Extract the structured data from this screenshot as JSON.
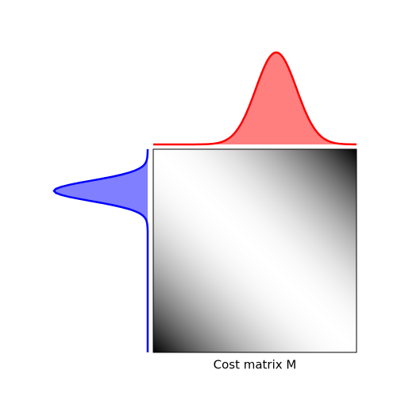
{
  "chart_data": {
    "type": "ot-matrix",
    "xlabel": "Cost matrix M",
    "n": 100,
    "source": {
      "mean": 20,
      "std": 5,
      "color": "blue"
    },
    "target": {
      "mean": 60,
      "std": 10,
      "color": "red"
    }
  }
}
